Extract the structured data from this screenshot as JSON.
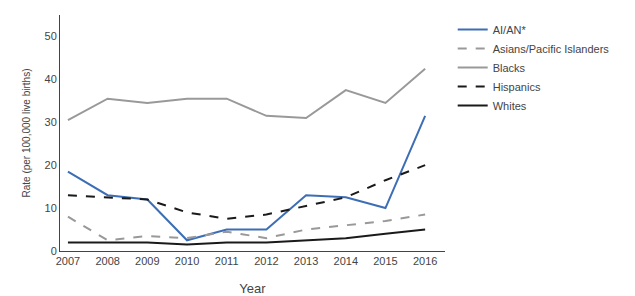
{
  "chart_data": {
    "type": "line",
    "x": [
      2007,
      2008,
      2009,
      2010,
      2011,
      2012,
      2013,
      2014,
      2015,
      2016
    ],
    "series": [
      {
        "name": "AI/AN*",
        "color": "#3d6eb5",
        "line_style": "solid",
        "values": [
          18.5,
          13.0,
          12.0,
          2.5,
          5.0,
          5.0,
          13.0,
          12.5,
          10.0,
          31.5
        ]
      },
      {
        "name": "Asians/Pacific Islanders",
        "color": "#999999",
        "line_style": "dashed",
        "values": [
          8.0,
          2.5,
          3.5,
          3.0,
          4.5,
          3.0,
          5.0,
          6.0,
          7.0,
          8.5
        ]
      },
      {
        "name": "Blacks",
        "color": "#999999",
        "line_style": "solid",
        "values": [
          30.5,
          35.5,
          34.5,
          35.5,
          35.5,
          31.5,
          31.0,
          37.5,
          34.5,
          42.5
        ]
      },
      {
        "name": "Hispanics",
        "color": "#1a1a1a",
        "line_style": "dashed",
        "values": [
          13.0,
          12.5,
          12.0,
          9.0,
          7.5,
          8.5,
          10.5,
          12.5,
          16.5,
          20.0
        ]
      },
      {
        "name": "Whites",
        "color": "#1a1a1a",
        "line_style": "solid",
        "values": [
          2.0,
          2.0,
          2.0,
          1.5,
          2.0,
          2.0,
          2.5,
          3.0,
          4.0,
          5.0
        ]
      }
    ],
    "xlabel": "Year",
    "ylabel": "Rate (per 100,000 live births)",
    "xlim": [
      2006.8,
      2016.5
    ],
    "xticks": [
      2007,
      2008,
      2009,
      2010,
      2011,
      2012,
      2013,
      2014,
      2015,
      2016
    ],
    "ylim": [
      0,
      55
    ],
    "yticks": [
      0,
      10,
      20,
      30,
      40,
      50
    ],
    "grid": false,
    "legend": "right"
  }
}
